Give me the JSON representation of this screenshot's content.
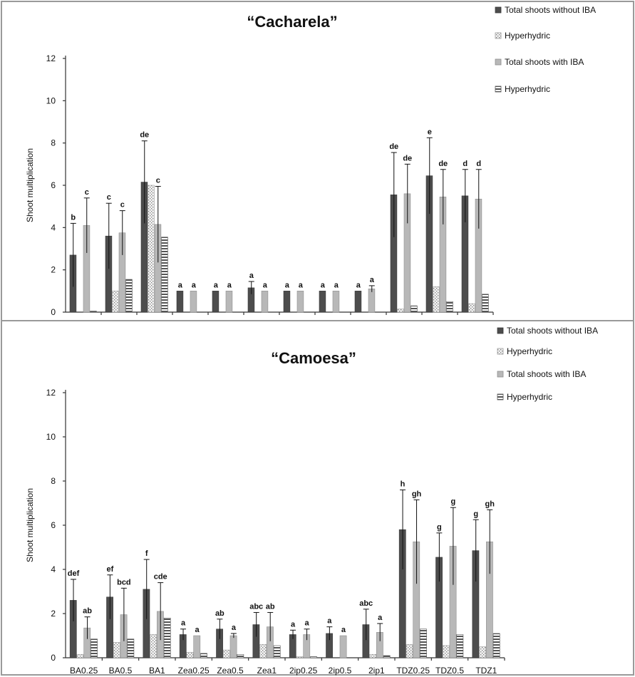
{
  "chart_data": [
    {
      "type": "bar",
      "title": "“Cacharela”",
      "ylabel": "Shoot multiplication",
      "ylim": [
        0,
        12
      ],
      "yticks": [
        0,
        2,
        4,
        6,
        8,
        10,
        12
      ],
      "categories": [
        "BA0.25",
        "BA0.5",
        "BA1",
        "Zea0.25",
        "Zea0.5",
        "Zea1",
        "2ip0.25",
        "2ip0.5",
        "2ip1",
        "TDZ0.25",
        "TDZ0.5",
        "TDZ1"
      ],
      "legend_position": "top-right",
      "series": [
        {
          "name": "Total shoots without IBA",
          "pattern": "solid-dark",
          "values": [
            2.7,
            3.6,
            6.15,
            1.0,
            1.0,
            1.15,
            1.0,
            1.0,
            1.0,
            5.55,
            6.45,
            5.5
          ],
          "errors": [
            1.5,
            1.55,
            1.95,
            0,
            0,
            0.3,
            0,
            0,
            0,
            2.0,
            1.8,
            1.25
          ],
          "sig": [
            "b",
            "c",
            "de",
            "a",
            "a",
            "a",
            "a",
            "a",
            "a",
            "de",
            "e",
            "d"
          ]
        },
        {
          "name": "Hyperhydric",
          "pattern": "dotted",
          "values": [
            0,
            1.0,
            6.0,
            0,
            0,
            0,
            0,
            0,
            0,
            0.15,
            1.2,
            0.4
          ],
          "errors": [
            0,
            0,
            0,
            0,
            0,
            0,
            0,
            0,
            0,
            0,
            0,
            0
          ],
          "sig": []
        },
        {
          "name": "Total shoots with IBA",
          "pattern": "solid-light",
          "values": [
            4.1,
            3.75,
            4.15,
            1.0,
            1.0,
            1.0,
            1.0,
            1.0,
            1.1,
            5.6,
            5.45,
            5.35
          ],
          "errors": [
            1.3,
            1.05,
            1.8,
            0,
            0,
            0,
            0,
            0,
            0.15,
            1.4,
            1.3,
            1.4
          ],
          "sig": [
            "c",
            "c",
            "c",
            "a",
            "a",
            "a",
            "a",
            "a",
            "a",
            "de",
            "de",
            "d"
          ]
        },
        {
          "name": "Hyperhydric",
          "pattern": "striped",
          "values": [
            0.05,
            1.55,
            3.55,
            0,
            0,
            0,
            0,
            0,
            0,
            0.3,
            0.5,
            0.85
          ],
          "errors": [
            0,
            0,
            0,
            0,
            0,
            0,
            0,
            0,
            0,
            0,
            0,
            0
          ],
          "sig": []
        }
      ]
    },
    {
      "type": "bar",
      "title": "“Camoesa”",
      "ylabel": "Shoot multiplication",
      "ylim": [
        0,
        12
      ],
      "yticks": [
        0,
        2,
        4,
        6,
        8,
        10,
        12
      ],
      "categories": [
        "BA0.25",
        "BA0.5",
        "BA1",
        "Zea0.25",
        "Zea0.5",
        "Zea1",
        "2ip0.25",
        "2ip0.5",
        "2ip1",
        "TDZ0.25",
        "TDZ0.5",
        "TDZ1"
      ],
      "legend_position": "top-right",
      "series": [
        {
          "name": "Total shoots without IBA",
          "pattern": "solid-dark",
          "values": [
            2.6,
            2.75,
            3.1,
            1.05,
            1.3,
            1.5,
            1.05,
            1.1,
            1.5,
            5.8,
            4.55,
            4.85
          ],
          "errors": [
            0.95,
            1.0,
            1.35,
            0.25,
            0.45,
            0.55,
            0.2,
            0.3,
            0.7,
            1.8,
            1.1,
            1.4
          ],
          "sig": [
            "def",
            "ef",
            "f",
            "a",
            "ab",
            "abc",
            "a",
            "a",
            "abc",
            "h",
            "g",
            "g"
          ]
        },
        {
          "name": "Hyperhydric",
          "pattern": "dotted",
          "values": [
            0.15,
            0.7,
            1.05,
            0.25,
            0.35,
            0.6,
            0.05,
            0,
            0.15,
            0.6,
            0.55,
            0.5
          ],
          "errors": [
            0,
            0,
            0,
            0,
            0,
            0,
            0,
            0,
            0,
            0,
            0,
            0
          ],
          "sig": []
        },
        {
          "name": "Total shoots with IBA",
          "pattern": "solid-light",
          "values": [
            1.35,
            1.95,
            2.1,
            1.0,
            1.0,
            1.4,
            1.05,
            1.0,
            1.15,
            5.25,
            5.05,
            5.25
          ],
          "errors": [
            0.5,
            1.2,
            1.3,
            0,
            0.1,
            0.65,
            0.25,
            0,
            0.4,
            1.9,
            1.75,
            1.45
          ],
          "sig": [
            "ab",
            "bcd",
            "cde",
            "a",
            "a",
            "ab",
            "a",
            "a",
            "a",
            "gh",
            "g",
            "gh"
          ]
        },
        {
          "name": "Hyperhydric",
          "pattern": "striped",
          "values": [
            0.85,
            0.85,
            1.8,
            0.2,
            0.15,
            0.55,
            0.05,
            0,
            0.1,
            1.3,
            1.05,
            1.1
          ],
          "errors": [
            0,
            0,
            0,
            0,
            0,
            0,
            0,
            0,
            0,
            0,
            0,
            0
          ],
          "sig": []
        }
      ]
    }
  ]
}
